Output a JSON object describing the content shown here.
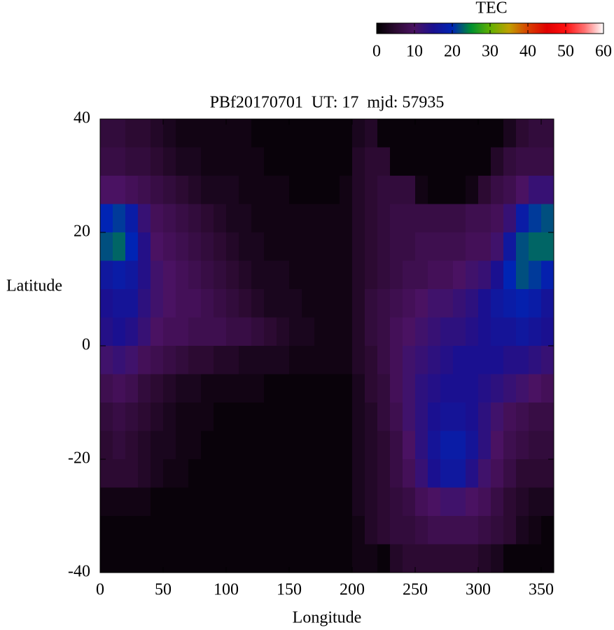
{
  "chart_data": {
    "type": "heatmap",
    "title": "PBf20170701  UT: 17  mjd: 57935",
    "x_label": "Longitude",
    "y_label": "Latitude",
    "colorbar_label": "TEC",
    "x": [
      5,
      15,
      25,
      35,
      45,
      55,
      65,
      75,
      85,
      95,
      105,
      115,
      125,
      135,
      145,
      155,
      165,
      175,
      185,
      195,
      205,
      215,
      225,
      235,
      245,
      255,
      265,
      275,
      285,
      295,
      305,
      315,
      325,
      335,
      345,
      355
    ],
    "y": [
      37.5,
      32.5,
      27.5,
      22.5,
      17.5,
      12.5,
      7.5,
      2.5,
      -2.5,
      -7.5,
      -12.5,
      -17.5,
      -22.5,
      -27.5,
      -32.5,
      -37.5
    ],
    "z": [
      [
        6,
        6,
        5,
        5,
        4,
        3,
        2,
        2,
        2,
        2,
        2,
        2,
        1,
        1,
        1,
        1,
        1,
        1,
        1,
        1,
        3,
        4,
        1,
        1,
        1,
        1,
        1,
        1,
        1,
        1,
        1,
        1,
        3,
        5,
        6,
        6
      ],
      [
        7,
        7,
        6,
        6,
        5,
        4,
        3,
        3,
        2,
        2,
        2,
        2,
        2,
        1,
        1,
        1,
        1,
        1,
        1,
        1,
        4,
        5,
        5,
        1,
        1,
        1,
        1,
        1,
        1,
        1,
        1,
        4,
        6,
        7,
        7,
        7
      ],
      [
        10,
        10,
        9,
        8,
        7,
        6,
        5,
        4,
        3,
        3,
        3,
        2,
        2,
        2,
        2,
        1,
        1,
        1,
        1,
        2,
        4,
        5,
        6,
        6,
        6,
        2,
        1,
        1,
        1,
        2,
        5,
        7,
        8,
        10,
        12,
        12
      ],
      [
        20,
        21,
        18,
        12,
        9,
        8,
        7,
        6,
        5,
        4,
        3,
        3,
        2,
        2,
        2,
        2,
        2,
        2,
        2,
        2,
        4,
        5,
        6,
        7,
        7,
        7,
        7,
        7,
        7,
        8,
        8,
        9,
        12,
        18,
        21,
        22
      ],
      [
        22,
        23,
        20,
        14,
        10,
        9,
        8,
        7,
        6,
        5,
        4,
        3,
        3,
        2,
        2,
        2,
        2,
        2,
        2,
        2,
        4,
        5,
        6,
        7,
        7,
        8,
        8,
        8,
        8,
        9,
        9,
        11,
        17,
        22,
        23,
        23
      ],
      [
        17,
        18,
        17,
        14,
        11,
        10,
        9,
        8,
        7,
        6,
        5,
        4,
        3,
        3,
        3,
        2,
        2,
        2,
        2,
        2,
        4,
        5,
        6,
        7,
        8,
        8,
        9,
        9,
        10,
        11,
        12,
        15,
        20,
        22,
        21,
        19
      ],
      [
        15,
        16,
        16,
        13,
        11,
        10,
        9,
        9,
        8,
        7,
        6,
        5,
        4,
        3,
        3,
        3,
        2,
        2,
        2,
        2,
        4,
        6,
        7,
        8,
        9,
        10,
        11,
        11,
        12,
        13,
        15,
        17,
        18,
        19,
        18,
        16
      ],
      [
        14,
        15,
        14,
        12,
        10,
        9,
        9,
        8,
        8,
        8,
        7,
        7,
        6,
        5,
        4,
        3,
        3,
        2,
        2,
        2,
        4,
        6,
        7,
        9,
        10,
        11,
        12,
        13,
        13,
        14,
        15,
        16,
        16,
        17,
        16,
        15
      ],
      [
        11,
        12,
        11,
        9,
        8,
        7,
        6,
        5,
        5,
        4,
        4,
        3,
        3,
        3,
        3,
        2,
        2,
        2,
        2,
        2,
        4,
        5,
        7,
        9,
        11,
        12,
        13,
        14,
        15,
        15,
        15,
        15,
        14,
        14,
        13,
        12
      ],
      [
        8,
        9,
        8,
        6,
        5,
        4,
        3,
        3,
        2,
        2,
        2,
        2,
        2,
        1,
        1,
        1,
        1,
        1,
        1,
        1,
        3,
        5,
        6,
        9,
        11,
        13,
        14,
        15,
        15,
        15,
        14,
        13,
        12,
        11,
        10,
        9
      ],
      [
        6,
        7,
        6,
        5,
        4,
        3,
        2,
        2,
        2,
        1,
        1,
        1,
        1,
        1,
        1,
        1,
        1,
        1,
        1,
        1,
        3,
        4,
        6,
        8,
        11,
        13,
        15,
        16,
        16,
        15,
        13,
        11,
        9,
        8,
        7,
        7
      ],
      [
        5,
        6,
        5,
        4,
        3,
        3,
        2,
        2,
        1,
        1,
        1,
        1,
        1,
        1,
        1,
        1,
        1,
        1,
        1,
        1,
        3,
        4,
        5,
        7,
        10,
        13,
        16,
        18,
        18,
        16,
        13,
        10,
        8,
        7,
        6,
        6
      ],
      [
        5,
        5,
        5,
        4,
        3,
        2,
        2,
        1,
        1,
        1,
        1,
        1,
        1,
        1,
        1,
        1,
        1,
        1,
        1,
        1,
        3,
        4,
        5,
        7,
        9,
        12,
        15,
        17,
        17,
        14,
        11,
        9,
        7,
        5,
        5,
        5
      ],
      [
        2,
        2,
        2,
        2,
        1,
        1,
        1,
        1,
        1,
        1,
        1,
        1,
        1,
        1,
        1,
        1,
        1,
        1,
        1,
        1,
        3,
        4,
        5,
        6,
        7,
        9,
        10,
        11,
        11,
        10,
        9,
        7,
        5,
        4,
        3,
        3
      ],
      [
        1,
        1,
        1,
        1,
        1,
        1,
        1,
        1,
        1,
        1,
        1,
        1,
        1,
        1,
        1,
        1,
        1,
        1,
        1,
        1,
        2,
        4,
        5,
        6,
        6,
        7,
        8,
        8,
        8,
        8,
        7,
        6,
        5,
        3,
        2,
        1
      ],
      [
        1,
        1,
        1,
        1,
        1,
        1,
        1,
        1,
        1,
        1,
        1,
        1,
        1,
        1,
        1,
        1,
        1,
        1,
        1,
        1,
        2,
        2,
        1,
        4,
        5,
        5,
        5,
        5,
        5,
        5,
        4,
        3,
        1,
        1,
        1,
        1
      ]
    ],
    "xlim": [
      0,
      360
    ],
    "ylim": [
      -40,
      40
    ],
    "xticks": [
      0,
      50,
      100,
      150,
      200,
      250,
      300,
      350
    ],
    "yticks": [
      -40,
      -20,
      0,
      20,
      40
    ],
    "clim": [
      0,
      60
    ],
    "cticks": [
      0,
      10,
      20,
      30,
      40,
      50,
      60
    ],
    "colormap": [
      "#000000",
      "#2c0a32",
      "#4a1262",
      "#1a1090",
      "#0024b4",
      "#009030",
      "#60b000",
      "#c0a000",
      "#d84000",
      "#e00000",
      "#ff1010",
      "#ff7070",
      "#ffffff"
    ]
  }
}
